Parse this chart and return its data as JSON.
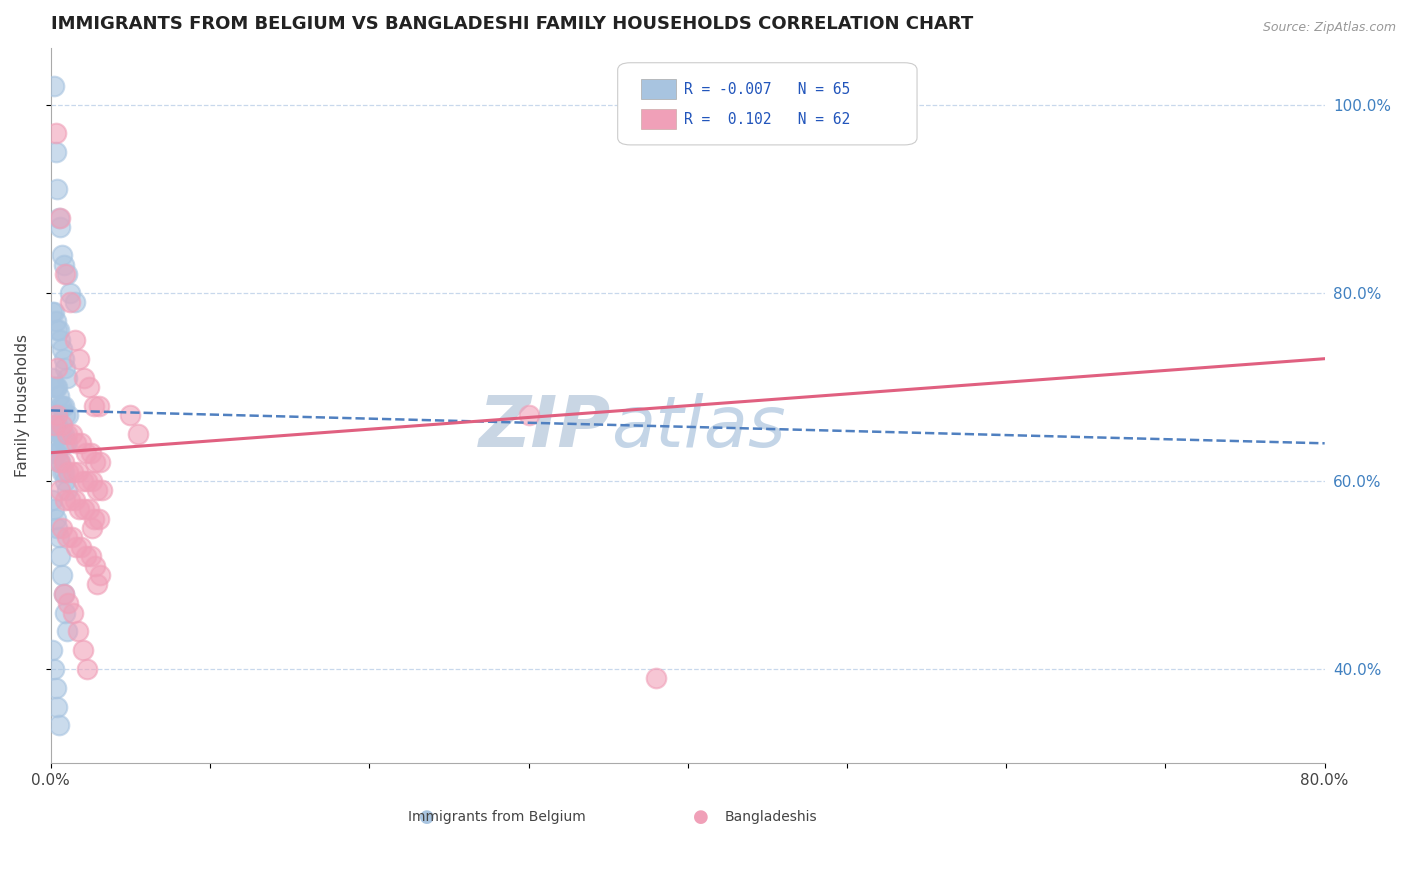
{
  "title": "IMMIGRANTS FROM BELGIUM VS BANGLADESHI FAMILY HOUSEHOLDS CORRELATION CHART",
  "source": "Source: ZipAtlas.com",
  "ylabel": "Family Households",
  "xlabel_blue": "Immigrants from Belgium",
  "xlabel_pink": "Bangladeshis",
  "legend_blue_R": "R = -0.007",
  "legend_blue_N": "N = 65",
  "legend_pink_R": "R =  0.102",
  "legend_pink_N": "N = 62",
  "blue_color": "#a8c4e0",
  "pink_color": "#f0a0b8",
  "blue_line_color": "#5080c0",
  "pink_line_color": "#e06080",
  "watermark_zip_color": "#c0cfe0",
  "watermark_atlas_color": "#b0c8e0",
  "xlim": [
    0.0,
    0.8
  ],
  "ylim": [
    0.3,
    1.06
  ],
  "blue_line_y_start": 0.675,
  "blue_line_y_end": 0.64,
  "pink_line_y_start": 0.63,
  "pink_line_y_end": 0.73,
  "background_color": "#ffffff",
  "grid_color": "#c8d8ec",
  "title_fontsize": 13,
  "axis_label_fontsize": 11,
  "tick_fontsize": 11,
  "right_tick_color": "#4080c0",
  "blue_scatter_x": [
    0.002,
    0.003,
    0.004,
    0.005,
    0.006,
    0.007,
    0.008,
    0.01,
    0.012,
    0.015,
    0.001,
    0.002,
    0.003,
    0.004,
    0.005,
    0.006,
    0.007,
    0.008,
    0.009,
    0.01,
    0.001,
    0.002,
    0.003,
    0.004,
    0.005,
    0.006,
    0.007,
    0.008,
    0.009,
    0.011,
    0.001,
    0.002,
    0.003,
    0.004,
    0.005,
    0.006,
    0.007,
    0.008,
    0.009,
    0.01,
    0.001,
    0.002,
    0.003,
    0.004,
    0.005,
    0.006,
    0.007,
    0.008,
    0.009,
    0.01,
    0.001,
    0.002,
    0.003,
    0.004,
    0.005,
    0.006,
    0.007,
    0.008,
    0.009,
    0.01,
    0.001,
    0.002,
    0.003,
    0.004,
    0.005
  ],
  "blue_scatter_y": [
    1.02,
    0.95,
    0.91,
    0.88,
    0.87,
    0.84,
    0.83,
    0.82,
    0.8,
    0.79,
    0.78,
    0.78,
    0.77,
    0.76,
    0.76,
    0.75,
    0.74,
    0.73,
    0.72,
    0.71,
    0.71,
    0.7,
    0.7,
    0.7,
    0.69,
    0.68,
    0.68,
    0.68,
    0.67,
    0.67,
    0.67,
    0.66,
    0.66,
    0.66,
    0.65,
    0.65,
    0.65,
    0.65,
    0.64,
    0.64,
    0.64,
    0.63,
    0.63,
    0.63,
    0.62,
    0.62,
    0.61,
    0.61,
    0.6,
    0.59,
    0.58,
    0.57,
    0.56,
    0.55,
    0.54,
    0.52,
    0.5,
    0.48,
    0.46,
    0.44,
    0.42,
    0.4,
    0.38,
    0.36,
    0.34
  ],
  "pink_scatter_x": [
    0.003,
    0.006,
    0.009,
    0.012,
    0.015,
    0.018,
    0.021,
    0.024,
    0.027,
    0.03,
    0.004,
    0.007,
    0.01,
    0.013,
    0.016,
    0.019,
    0.022,
    0.025,
    0.028,
    0.031,
    0.005,
    0.008,
    0.011,
    0.014,
    0.017,
    0.02,
    0.023,
    0.026,
    0.029,
    0.032,
    0.006,
    0.009,
    0.012,
    0.015,
    0.018,
    0.021,
    0.024,
    0.027,
    0.03,
    0.05,
    0.007,
    0.01,
    0.013,
    0.016,
    0.019,
    0.022,
    0.025,
    0.028,
    0.031,
    0.055,
    0.008,
    0.011,
    0.014,
    0.017,
    0.02,
    0.023,
    0.026,
    0.029,
    0.38,
    0.3,
    0.002,
    0.004
  ],
  "pink_scatter_y": [
    0.97,
    0.88,
    0.82,
    0.79,
    0.75,
    0.73,
    0.71,
    0.7,
    0.68,
    0.68,
    0.67,
    0.66,
    0.65,
    0.65,
    0.64,
    0.64,
    0.63,
    0.63,
    0.62,
    0.62,
    0.62,
    0.62,
    0.61,
    0.61,
    0.61,
    0.6,
    0.6,
    0.6,
    0.59,
    0.59,
    0.59,
    0.58,
    0.58,
    0.58,
    0.57,
    0.57,
    0.57,
    0.56,
    0.56,
    0.67,
    0.55,
    0.54,
    0.54,
    0.53,
    0.53,
    0.52,
    0.52,
    0.51,
    0.5,
    0.65,
    0.48,
    0.47,
    0.46,
    0.44,
    0.42,
    0.4,
    0.55,
    0.49,
    0.39,
    0.67,
    0.66,
    0.72
  ]
}
